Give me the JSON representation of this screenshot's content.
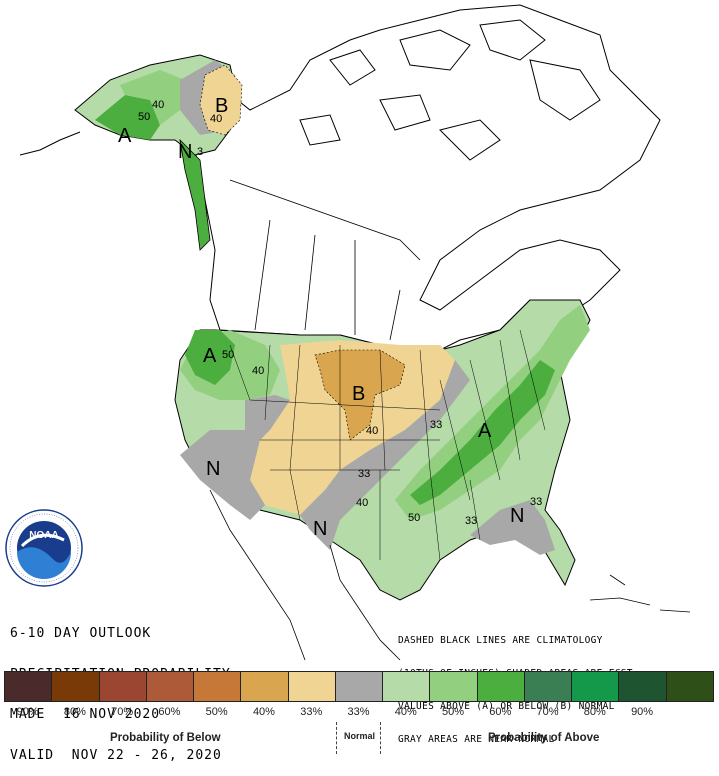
{
  "outlook": {
    "line1": "6-10 DAY OUTLOOK",
    "line2": "PRECIPITATION PROBABILITY",
    "line3": "MADE  16 NOV 2020",
    "line4": "VALID  NOV 22 - 26, 2020"
  },
  "notes": {
    "line1": "DASHED BLACK LINES ARE CLIMATOLOGY",
    "line2": "(10THS OF INCHES) SHADED AREAS ARE FCST",
    "line3": "VALUES ABOVE (A) OR BELOW (B) NORMAL",
    "line4": "GRAY AREAS ARE NEAR-NORMAL"
  },
  "logo": {
    "text": "NOAA",
    "ring_text": "NATIONAL OCEANIC AND ATMOSPHERIC ADMINISTRATION",
    "ring_text_bottom": "U.S. DEPARTMENT OF COMMERCE"
  },
  "legend": {
    "colors": [
      "#4a2a2a",
      "#7a3a08",
      "#9a4630",
      "#ac5a38",
      "#c67838",
      "#d9a54e",
      "#f0d494",
      "#a8a8a8",
      "#b4dba8",
      "#92cf7e",
      "#4cae3e",
      "#3a7f54",
      "#14984a",
      "#1e5430",
      "#2e5018"
    ],
    "labels": [
      "90%",
      "80%",
      "70%",
      "60%",
      "50%",
      "40%",
      "33%",
      "33%",
      "40%",
      "50%",
      "60%",
      "70%",
      "80%",
      "90%",
      ""
    ],
    "below_label": "Probability of Below",
    "normal_label": "Normal",
    "above_label": "Probability of Above"
  },
  "map_labels": {
    "alaska_40": "40",
    "alaska_50": "50",
    "alaska_A": "A",
    "alaska_N": "N",
    "alaska_3": "3",
    "alaska_B": "B",
    "alaska_B40": "40",
    "pnw_A": "A",
    "pnw_50": "50",
    "pnw_40": "40",
    "plains_B": "B",
    "plains_40": "40",
    "sw_N": "N",
    "tx_N": "N",
    "se_N": "N",
    "east_A": "A",
    "c_33a": "33",
    "c_33b": "33",
    "c_33c": "33",
    "c_33d": "33",
    "c_40": "40",
    "c_50": "50"
  },
  "colors": {
    "below_light": "#f0d494",
    "below_medium": "#d9a54e",
    "normal_gray": "#a8a8a8",
    "above_light": "#b4dba8",
    "above_medium": "#92cf7e",
    "above_strong": "#4cae3e"
  }
}
